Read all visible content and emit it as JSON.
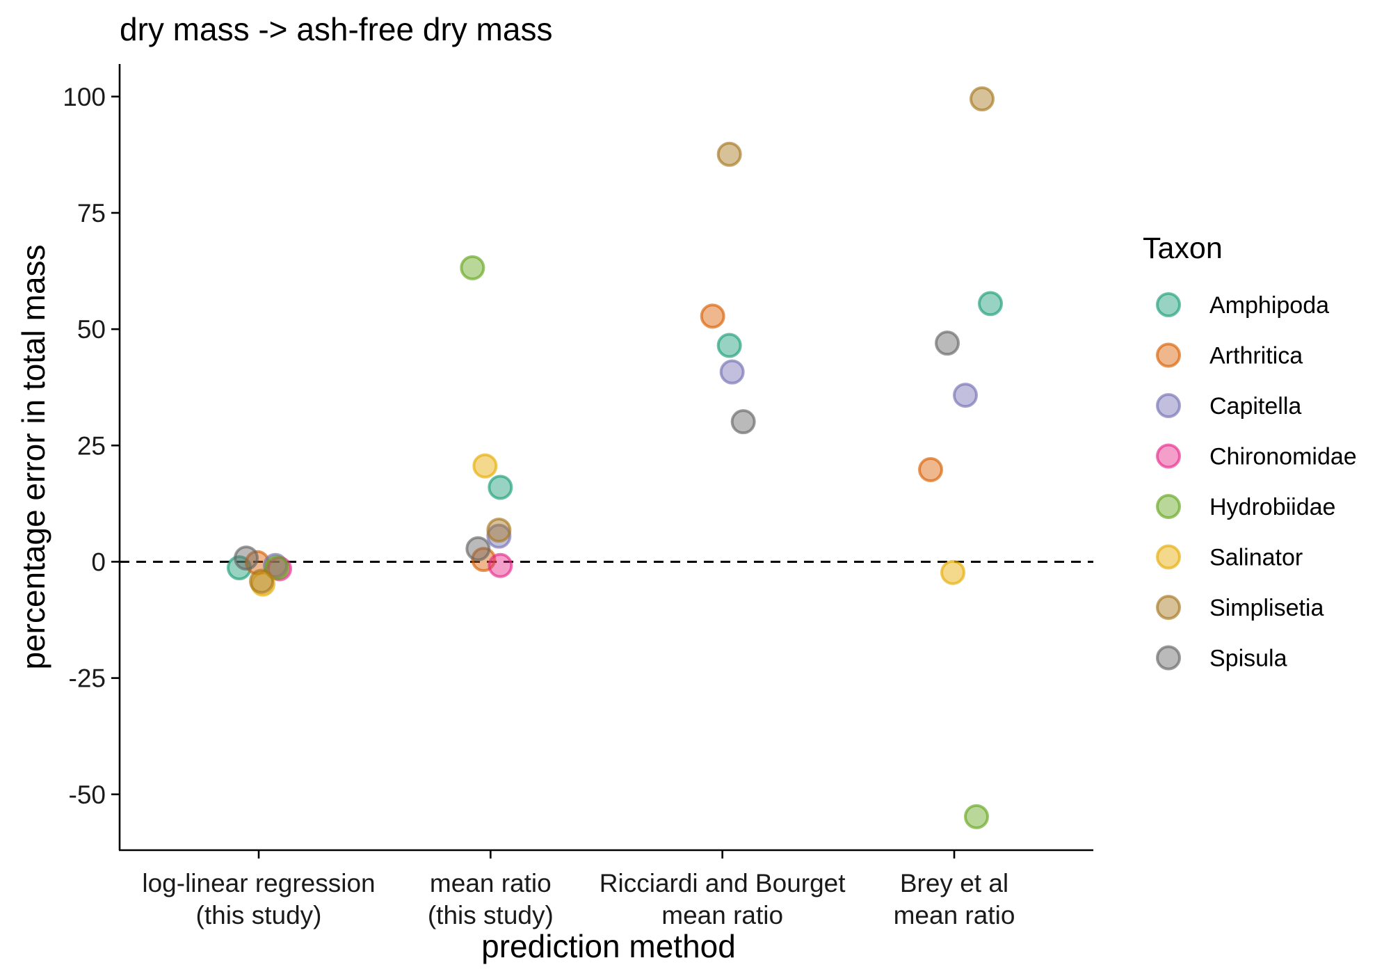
{
  "chart_data": {
    "type": "scatter",
    "title": "dry mass -> ash-free dry mass",
    "xlabel": "prediction method",
    "ylabel": "percentage error in total mass",
    "categories": [
      [
        "log-linear regression",
        "(this study)"
      ],
      [
        "mean ratio",
        "(this study)"
      ],
      [
        "Ricciardi and Bourget",
        "mean ratio"
      ],
      [
        "Brey et al",
        "mean ratio"
      ]
    ],
    "ylim": [
      -62,
      107
    ],
    "yticks": [
      -50,
      -25,
      0,
      25,
      50,
      75,
      100
    ],
    "ytick_labels": [
      "-50",
      "-25",
      "0",
      "25",
      "50",
      "75",
      "100"
    ],
    "reference_line": 0,
    "grid": false,
    "legend_title": "Taxon",
    "legend_position": "right",
    "series": [
      {
        "name": "Amphipoda",
        "color": "#1B9E77",
        "points": [
          {
            "x": 0,
            "y": -1.3
          },
          {
            "x": 1,
            "y": 16
          },
          {
            "x": 2,
            "y": 46.5
          },
          {
            "x": 3,
            "y": 55.5
          }
        ]
      },
      {
        "name": "Arthritica",
        "color": "#D95F02",
        "points": [
          {
            "x": 0,
            "y": -0.2
          },
          {
            "x": 1,
            "y": 0.5
          },
          {
            "x": 2,
            "y": 52.8
          },
          {
            "x": 3,
            "y": 19.8
          }
        ]
      },
      {
        "name": "Capitella",
        "color": "#7570B3",
        "points": [
          {
            "x": 0,
            "y": -0.8
          },
          {
            "x": 1,
            "y": 5.5
          },
          {
            "x": 2,
            "y": 40.8
          },
          {
            "x": 3,
            "y": 35.8
          }
        ]
      },
      {
        "name": "Chironomidae",
        "color": "#E7298A",
        "points": [
          {
            "x": 0,
            "y": -1.5
          },
          {
            "x": 1,
            "y": -0.8
          },
          {
            "x": 2,
            "y": null
          },
          {
            "x": 3,
            "y": null
          }
        ]
      },
      {
        "name": "Hydrobiidae",
        "color": "#66A61E",
        "points": [
          {
            "x": 0,
            "y": -1.3
          },
          {
            "x": 1,
            "y": 63.2
          },
          {
            "x": 2,
            "y": null
          },
          {
            "x": 3,
            "y": -54.8
          }
        ]
      },
      {
        "name": "Salinator",
        "color": "#E6AB02",
        "points": [
          {
            "x": 0,
            "y": -4.8
          },
          {
            "x": 1,
            "y": 20.6
          },
          {
            "x": 2,
            "y": null
          },
          {
            "x": 3,
            "y": -2.3
          }
        ]
      },
      {
        "name": "Simplisetia",
        "color": "#A6761D",
        "points": [
          {
            "x": 0,
            "y": -4.2
          },
          {
            "x": 1,
            "y": 6.8
          },
          {
            "x": 2,
            "y": 87.6
          },
          {
            "x": 3,
            "y": 99.5
          }
        ]
      },
      {
        "name": "Spisula",
        "color": "#666666",
        "points": [
          {
            "x": 0,
            "y": 0.8
          },
          {
            "x": 1,
            "y": 2.8
          },
          {
            "x": 2,
            "y": 30.1
          },
          {
            "x": 3,
            "y": 47
          }
        ]
      }
    ]
  }
}
